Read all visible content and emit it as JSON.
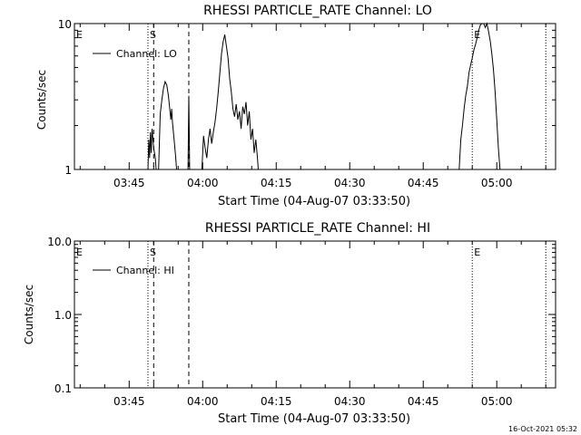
{
  "footer_timestamp": "16-Oct-2021 05:32",
  "colors": {
    "line": "#000000",
    "background": "#ffffff"
  },
  "chart_data": [
    {
      "type": "line",
      "title": "RHESSI PARTICLE_RATE Channel: LO",
      "xlabel": "Start Time (04-Aug-07 03:33:50)",
      "ylabel": "Counts/sec",
      "yscale": "log",
      "ylim": [
        1,
        10
      ],
      "y_tick_labels": [
        "10",
        "1"
      ],
      "y_tick_values": [
        10,
        1
      ],
      "xlim": [
        "03:33:50",
        "05:12:00"
      ],
      "x_tick_labels": [
        "03:45",
        "04:00",
        "04:15",
        "04:30",
        "04:45",
        "05:00"
      ],
      "legend": {
        "label": "Channel: LO",
        "placement": "top-left"
      },
      "markers": [
        {
          "label": "E",
          "time": "03:33:50",
          "style": "none"
        },
        {
          "label": "S",
          "time": "03:48:50",
          "style": "dotted"
        },
        {
          "label": "",
          "time": "03:50:00",
          "style": "dashed"
        },
        {
          "label": "",
          "time": "03:57:10",
          "style": "dashed"
        },
        {
          "label": "E",
          "time": "04:55:00",
          "style": "dotted"
        },
        {
          "label": "",
          "time": "05:10:00",
          "style": "dotted"
        }
      ],
      "series": [
        {
          "segments": [
            [
              [
                "03:48:50",
                1
              ],
              [
                "03:49:00",
                1.6
              ],
              [
                "03:49:10",
                1.2
              ],
              [
                "03:49:20",
                1.8
              ],
              [
                "03:49:30",
                1.3
              ],
              [
                "03:49:40",
                1.9
              ],
              [
                "03:50:00",
                1.4
              ],
              [
                "03:50:20",
                1.2
              ],
              [
                "03:50:30",
                1.0
              ]
            ],
            [
              [
                "03:51:00",
                1.0
              ],
              [
                "03:51:20",
                2.4
              ],
              [
                "03:51:40",
                3.0
              ],
              [
                "03:52:00",
                3.6
              ],
              [
                "03:52:20",
                4.0
              ],
              [
                "03:52:40",
                3.8
              ],
              [
                "03:53:00",
                3.2
              ],
              [
                "03:53:20",
                2.5
              ],
              [
                "03:53:30",
                2.2
              ],
              [
                "03:53:40",
                2.6
              ],
              [
                "03:53:50",
                2.1
              ],
              [
                "03:54:10",
                1.6
              ],
              [
                "03:54:30",
                1.2
              ],
              [
                "03:54:40",
                1.0
              ]
            ],
            [
              [
                "03:57:00",
                1.0
              ],
              [
                "03:57:10",
                3.2
              ],
              [
                "03:57:20",
                1.0
              ]
            ],
            [
              [
                "03:59:50",
                1.0
              ],
              [
                "04:00:10",
                1.7
              ],
              [
                "04:00:30",
                1.4
              ],
              [
                "04:00:50",
                1.2
              ],
              [
                "04:01:10",
                1.6
              ],
              [
                "04:01:30",
                1.9
              ],
              [
                "04:01:50",
                1.5
              ],
              [
                "04:02:10",
                1.8
              ],
              [
                "04:02:30",
                2.1
              ],
              [
                "04:02:50",
                2.6
              ],
              [
                "04:03:10",
                3.4
              ],
              [
                "04:03:30",
                4.6
              ],
              [
                "04:03:50",
                6.2
              ],
              [
                "04:04:10",
                7.5
              ],
              [
                "04:04:30",
                8.4
              ],
              [
                "04:04:50",
                7.0
              ],
              [
                "04:05:10",
                5.8
              ],
              [
                "04:05:30",
                4.2
              ],
              [
                "04:05:50",
                3.4
              ],
              [
                "04:06:10",
                2.6
              ],
              [
                "04:06:30",
                2.3
              ],
              [
                "04:06:50",
                2.8
              ],
              [
                "04:07:10",
                2.2
              ],
              [
                "04:07:30",
                2.5
              ],
              [
                "04:07:50",
                1.9
              ],
              [
                "04:08:10",
                2.7
              ],
              [
                "04:08:30",
                2.4
              ],
              [
                "04:08:50",
                2.9
              ],
              [
                "04:09:10",
                2.0
              ],
              [
                "04:09:30",
                2.5
              ],
              [
                "04:09:50",
                1.6
              ],
              [
                "04:10:10",
                1.9
              ],
              [
                "04:10:30",
                1.3
              ],
              [
                "04:10:50",
                1.6
              ],
              [
                "04:11:10",
                1.2
              ],
              [
                "04:11:20",
                1.0
              ]
            ],
            [
              [
                "04:52:20",
                1.0
              ],
              [
                "04:52:40",
                1.6
              ],
              [
                "04:53:00",
                2.0
              ],
              [
                "04:53:20",
                2.6
              ],
              [
                "04:53:40",
                3.2
              ],
              [
                "04:54:00",
                3.7
              ],
              [
                "04:54:20",
                4.6
              ],
              [
                "04:54:40",
                5.2
              ],
              [
                "04:55:00",
                5.8
              ],
              [
                "04:55:20",
                6.6
              ],
              [
                "04:55:40",
                7.2
              ],
              [
                "04:56:00",
                8.0
              ],
              [
                "04:56:20",
                9.0
              ],
              [
                "04:56:40",
                9.8
              ],
              [
                "04:57:00",
                10.0
              ],
              [
                "04:57:20",
                10.0
              ],
              [
                "04:57:40",
                9.4
              ],
              [
                "04:58:00",
                10.0
              ],
              [
                "04:58:20",
                8.8
              ],
              [
                "04:58:40",
                7.6
              ],
              [
                "04:59:00",
                6.2
              ],
              [
                "04:59:20",
                4.8
              ],
              [
                "04:59:40",
                3.4
              ],
              [
                "05:00:00",
                2.2
              ],
              [
                "05:00:20",
                1.4
              ],
              [
                "05:00:40",
                1.0
              ]
            ]
          ]
        }
      ]
    },
    {
      "type": "line",
      "title": "RHESSI PARTICLE_RATE Channel: HI",
      "xlabel": "Start Time (04-Aug-07 03:33:50)",
      "ylabel": "Counts/sec",
      "yscale": "log",
      "ylim": [
        0.1,
        10
      ],
      "y_tick_labels": [
        "10.0",
        "1.0",
        "0.1"
      ],
      "y_tick_values": [
        10,
        1,
        0.1
      ],
      "xlim": [
        "03:33:50",
        "05:12:00"
      ],
      "x_tick_labels": [
        "03:45",
        "04:00",
        "04:15",
        "04:30",
        "04:45",
        "05:00"
      ],
      "legend": {
        "label": "Channel: HI",
        "placement": "top-left"
      },
      "markers": [
        {
          "label": "E",
          "time": "03:33:50",
          "style": "none"
        },
        {
          "label": "S",
          "time": "03:48:50",
          "style": "dotted"
        },
        {
          "label": "",
          "time": "03:50:00",
          "style": "dashed"
        },
        {
          "label": "",
          "time": "03:57:10",
          "style": "dashed"
        },
        {
          "label": "E",
          "time": "04:55:00",
          "style": "dotted"
        },
        {
          "label": "",
          "time": "05:10:00",
          "style": "dotted"
        }
      ],
      "series": [
        {
          "segments": []
        }
      ]
    }
  ]
}
